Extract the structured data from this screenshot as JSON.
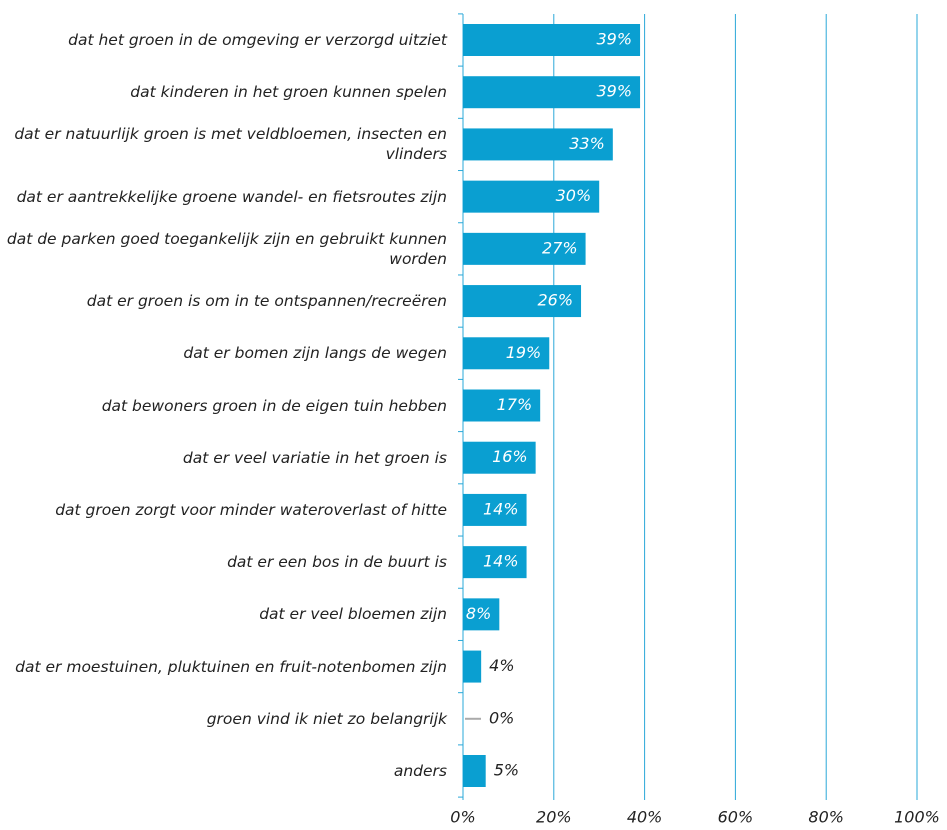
{
  "chart_data": {
    "type": "bar",
    "orientation": "horizontal",
    "categories": [
      "dat het groen in de omgeving er verzorgd uitziet",
      "dat kinderen in het groen kunnen spelen",
      "dat er natuurlijk groen is met veldbloemen, insecten en vlinders",
      "dat er aantrekkelijke groene wandel- en fietsroutes zijn",
      "dat de parken goed toegankelijk zijn en gebruikt kunnen worden",
      "dat er groen is om in te ontspannen/recreëren",
      "dat er bomen zijn langs de wegen",
      "dat bewoners groen in de eigen tuin hebben",
      "dat er veel variatie in het groen is",
      "dat groen zorgt voor minder wateroverlast of hitte",
      "dat er een bos in de buurt is",
      "dat er veel bloemen zijn",
      "dat er moestuinen, pluktuinen en fruit-notenbomen zijn",
      "groen vind ik niet zo belangrijk",
      "anders"
    ],
    "values": [
      39,
      39,
      33,
      30,
      27,
      26,
      19,
      17,
      16,
      14,
      14,
      8,
      4,
      0,
      5
    ],
    "value_labels": [
      "39%",
      "39%",
      "33%",
      "30%",
      "27%",
      "26%",
      "19%",
      "17%",
      "16%",
      "14%",
      "14%",
      "8%",
      "4%",
      "0%",
      "5%"
    ],
    "color": "#0a9fd1",
    "xlim": [
      0,
      100
    ],
    "xticks": [
      {
        "value": 0,
        "label": "0%"
      },
      {
        "value": 20,
        "label": "20%"
      },
      {
        "value": 40,
        "label": "40%"
      },
      {
        "value": 60,
        "label": "60%"
      },
      {
        "value": 80,
        "label": "80%"
      },
      {
        "value": 100,
        "label": "100%"
      }
    ],
    "grid": true
  }
}
